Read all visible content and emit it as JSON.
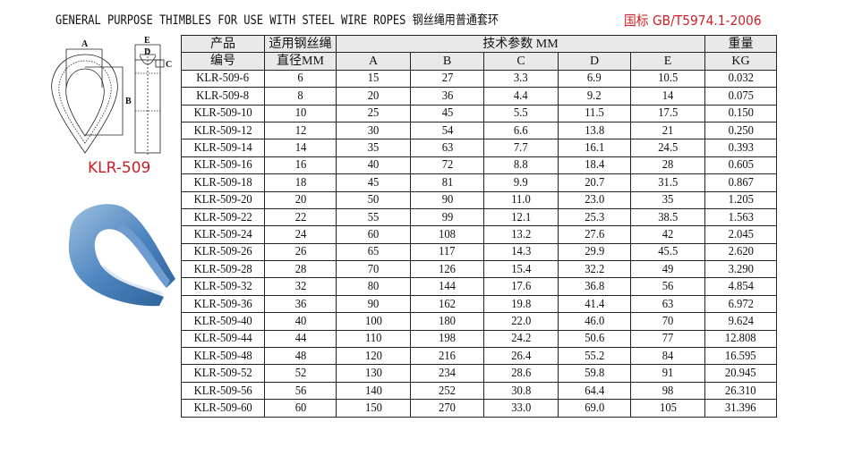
{
  "header": {
    "title": "GENERAL PURPOSE THIMBLES FOR USE WITH STEEL WIRE ROPES  钢丝绳用普通套环",
    "standard": "国标 GB/T5974.1-2006",
    "accent_color": "#d0202a"
  },
  "diagram": {
    "model_label": "KLR-509",
    "dimension_labels": [
      "A",
      "B",
      "C",
      "D",
      "E"
    ]
  },
  "table": {
    "headers": {
      "product_no": "产品编号",
      "product_no_l1": "产品",
      "product_no_l2": "编号",
      "rope_dia_l1": "适用钢丝绳",
      "rope_dia_l2": "直径MM",
      "tech_params": "技术参数 MM",
      "weight_l1": "重量",
      "weight_l2": "KG",
      "cols": [
        "A",
        "B",
        "C",
        "D",
        "E"
      ]
    },
    "rows": [
      [
        "KLR-509-6",
        "6",
        "15",
        "27",
        "3.3",
        "6.9",
        "10.5",
        "0.032"
      ],
      [
        "KLR-509-8",
        "8",
        "20",
        "36",
        "4.4",
        "9.2",
        "14",
        "0.075"
      ],
      [
        "KLR-509-10",
        "10",
        "25",
        "45",
        "5.5",
        "11.5",
        "17.5",
        "0.150"
      ],
      [
        "KLR-509-12",
        "12",
        "30",
        "54",
        "6.6",
        "13.8",
        "21",
        "0.250"
      ],
      [
        "KLR-509-14",
        "14",
        "35",
        "63",
        "7.7",
        "16.1",
        "24.5",
        "0.393"
      ],
      [
        "KLR-509-16",
        "16",
        "40",
        "72",
        "8.8",
        "18.4",
        "28",
        "0.605"
      ],
      [
        "KLR-509-18",
        "18",
        "45",
        "81",
        "9.9",
        "20.7",
        "31.5",
        "0.867"
      ],
      [
        "KLR-509-20",
        "20",
        "50",
        "90",
        "11.0",
        "23.0",
        "35",
        "1.205"
      ],
      [
        "KLR-509-22",
        "22",
        "55",
        "99",
        "12.1",
        "25.3",
        "38.5",
        "1.563"
      ],
      [
        "KLR-509-24",
        "24",
        "60",
        "108",
        "13.2",
        "27.6",
        "42",
        "2.045"
      ],
      [
        "KLR-509-26",
        "26",
        "65",
        "117",
        "14.3",
        "29.9",
        "45.5",
        "2.620"
      ],
      [
        "KLR-509-28",
        "28",
        "70",
        "126",
        "15.4",
        "32.2",
        "49",
        "3.290"
      ],
      [
        "KLR-509-32",
        "32",
        "80",
        "144",
        "17.6",
        "36.8",
        "56",
        "4.854"
      ],
      [
        "KLR-509-36",
        "36",
        "90",
        "162",
        "19.8",
        "41.4",
        "63",
        "6.972"
      ],
      [
        "KLR-509-40",
        "40",
        "100",
        "180",
        "22.0",
        "46.0",
        "70",
        "9.624"
      ],
      [
        "KLR-509-44",
        "44",
        "110",
        "198",
        "24.2",
        "50.6",
        "77",
        "12.808"
      ],
      [
        "KLR-509-48",
        "48",
        "120",
        "216",
        "26.4",
        "55.2",
        "84",
        "16.595"
      ],
      [
        "KLR-509-52",
        "52",
        "130",
        "234",
        "28.6",
        "59.8",
        "91",
        "20.945"
      ],
      [
        "KLR-509-56",
        "56",
        "140",
        "252",
        "30.8",
        "64.4",
        "98",
        "26.310"
      ],
      [
        "KLR-509-60",
        "60",
        "150",
        "270",
        "33.0",
        "69.0",
        "105",
        "31.396"
      ]
    ]
  }
}
